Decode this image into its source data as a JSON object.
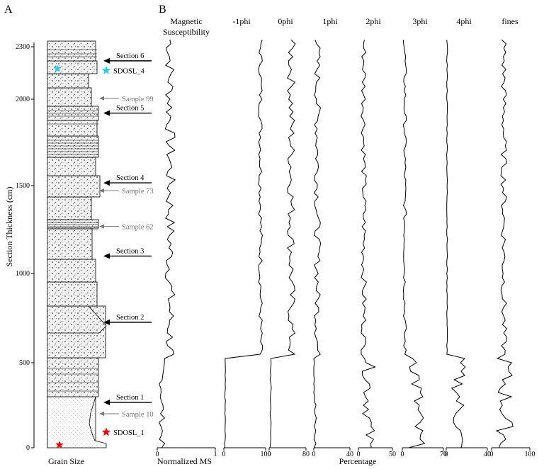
{
  "panel_a": {
    "letter": "A",
    "y_axis_label": "Section Thickness (cm)",
    "y_ticks": [
      "0",
      "500",
      "1000",
      "1500",
      "2000",
      "2300"
    ],
    "x_label": "Grain Size",
    "sections": [
      {
        "label": "Section 6",
        "thickness_cm": 2220
      },
      {
        "label": "Section 5",
        "thickness_cm": 1920
      },
      {
        "label": "Section 4",
        "thickness_cm": 1520
      },
      {
        "label": "Section 3",
        "thickness_cm": 1100
      },
      {
        "label": "Section 2",
        "thickness_cm": 720
      },
      {
        "label": "Section 1",
        "thickness_cm": 260
      }
    ],
    "samples": [
      {
        "label": "Sample 99",
        "thickness_cm": 2005
      },
      {
        "label": "Sample 73",
        "thickness_cm": 1475
      },
      {
        "label": "Sample 62",
        "thickness_cm": 1270
      },
      {
        "label": "Sample 10",
        "thickness_cm": 195
      }
    ],
    "osl": [
      {
        "label": "SDOSL_4",
        "thickness_cm": 2165,
        "color": "#22d3ee"
      },
      {
        "label": "SDOSL_1",
        "thickness_cm": 90,
        "color": "#ff0000"
      }
    ]
  },
  "panel_b": {
    "letter": "B",
    "columns": [
      {
        "title": "Magnetic",
        "title2": "Susceptibility",
        "tick_min": "0",
        "tick_max": "1"
      },
      {
        "title": "-1phi",
        "tick_min": "0",
        "tick_max": "100"
      },
      {
        "title": "0phi",
        "tick_min": "0",
        "tick_max": "80"
      },
      {
        "title": "1phi",
        "tick_min": "0",
        "tick_max": "40"
      },
      {
        "title": "2phi",
        "tick_min": "0",
        "tick_max": "50"
      },
      {
        "title": "3phi",
        "tick_min": "0",
        "tick_max": "70"
      },
      {
        "title": "4phi",
        "tick_min": "0",
        "tick_max": "40"
      },
      {
        "title": "fines",
        "tick_min": "0",
        "tick_max": "100"
      }
    ],
    "xlabel_ms": "Normalized MS",
    "xlabel_pct": "Percentage"
  }
}
